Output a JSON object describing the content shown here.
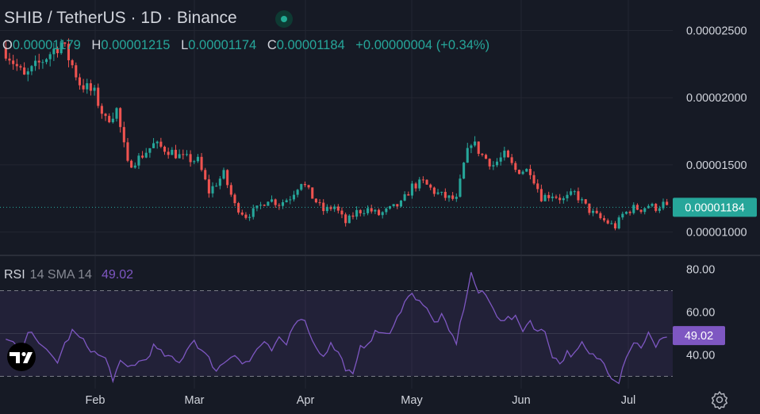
{
  "header": {
    "title": "SHIB / TetherUS · 1D · Binance",
    "ohlc": {
      "o_key": "O",
      "o_val": "0.00001179",
      "h_key": "H",
      "h_val": "0.00001215",
      "l_key": "L",
      "l_val": "0.00001174",
      "c_key": "C",
      "c_val": "0.00001184",
      "change": "+0.00000004 (+0.34%)"
    }
  },
  "rsi_legend": {
    "name": "RSI",
    "params": "14 SMA 14",
    "value": "49.02"
  },
  "colors": {
    "bg": "#161a25",
    "up": "#26a69a",
    "down": "#ef5350",
    "rsi": "#7e57c2",
    "grid": "#232632",
    "text": "#d1d4dc"
  },
  "icons": {
    "logo": "tradingview-logo-icon",
    "settings": "gear-icon"
  },
  "chart_data": [
    {
      "type": "candlestick",
      "title": "SHIB / TetherUS · 1D · Binance",
      "x_tick_labels": [
        "Feb",
        "Mar",
        "Apr",
        "May",
        "Jun",
        "Jul"
      ],
      "y_tick_labels": [
        "0.00002500",
        "0.00002000",
        "0.00001500",
        "0.00001000"
      ],
      "y_ticks": [
        2.5e-05,
        2e-05,
        1.5e-05,
        1e-05
      ],
      "ylim": [
        8.5e-06,
        2.68e-05
      ],
      "last_price": 1.184e-05,
      "last_price_label": "0.00001184",
      "grid": true,
      "close_path": [
        [
          0,
          2.35e-05
        ],
        [
          5,
          2.15e-05
        ],
        [
          10,
          2.28e-05
        ],
        [
          15,
          2.41e-05
        ],
        [
          18,
          2.24e-05
        ],
        [
          20,
          2.11e-05
        ],
        [
          24,
          2.03e-05
        ],
        [
          27,
          1.83e-05
        ],
        [
          30,
          1.91e-05
        ],
        [
          33,
          1.5e-05
        ],
        [
          36,
          1.55e-05
        ],
        [
          40,
          1.65e-05
        ],
        [
          44,
          1.61e-05
        ],
        [
          48,
          1.55e-05
        ],
        [
          52,
          1.53e-05
        ],
        [
          55,
          1.3e-05
        ],
        [
          59,
          1.43e-05
        ],
        [
          62,
          1.2e-05
        ],
        [
          65,
          1.12e-05
        ],
        [
          68,
          1.17e-05
        ],
        [
          71,
          1.25e-05
        ],
        [
          74,
          1.21e-05
        ],
        [
          77,
          1.26e-05
        ],
        [
          80,
          1.38e-05
        ],
        [
          83,
          1.26e-05
        ],
        [
          86,
          1.16e-05
        ],
        [
          89,
          1.19e-05
        ],
        [
          92,
          1.07e-05
        ],
        [
          95,
          1.15e-05
        ],
        [
          98,
          1.17e-05
        ],
        [
          101,
          1.13e-05
        ],
        [
          104,
          1.17e-05
        ],
        [
          107,
          1.21e-05
        ],
        [
          110,
          1.34e-05
        ],
        [
          113,
          1.37e-05
        ],
        [
          116,
          1.3e-05
        ],
        [
          119,
          1.26e-05
        ],
        [
          122,
          1.24e-05
        ],
        [
          124,
          1.5e-05
        ],
        [
          126,
          1.68e-05
        ],
        [
          129,
          1.57e-05
        ],
        [
          132,
          1.5e-05
        ],
        [
          135,
          1.57e-05
        ],
        [
          138,
          1.46e-05
        ],
        [
          142,
          1.46e-05
        ],
        [
          145,
          1.26e-05
        ],
        [
          148,
          1.28e-05
        ],
        [
          151,
          1.24e-05
        ],
        [
          154,
          1.29e-05
        ],
        [
          158,
          1.16e-05
        ],
        [
          161,
          1.1e-05
        ],
        [
          165,
          1.04e-05
        ],
        [
          167,
          1.13e-05
        ],
        [
          170,
          1.18e-05
        ],
        [
          172,
          1.17e-05
        ],
        [
          174,
          1.2e-05
        ],
        [
          176,
          1.18e-05
        ],
        [
          178,
          1.21e-05
        ],
        [
          179,
          1.18e-05
        ]
      ]
    },
    {
      "type": "line",
      "title": "RSI 14 SMA 14",
      "series": [
        {
          "name": "RSI",
          "last": 49.02
        }
      ],
      "y_tick_labels": [
        "80.00",
        "60.00",
        "40.00"
      ],
      "y_ticks": [
        80,
        60,
        40
      ],
      "bands": [
        70,
        30
      ],
      "ylim": [
        25,
        85
      ],
      "last_label": "49.02",
      "path": [
        [
          0,
          47
        ],
        [
          4,
          43
        ],
        [
          7,
          52
        ],
        [
          10,
          43
        ],
        [
          14,
          37
        ],
        [
          16,
          45
        ],
        [
          18,
          51
        ],
        [
          20,
          48
        ],
        [
          24,
          41
        ],
        [
          27,
          38
        ],
        [
          29,
          29
        ],
        [
          31,
          36
        ],
        [
          33,
          34
        ],
        [
          35,
          36
        ],
        [
          38,
          38
        ],
        [
          40,
          44
        ],
        [
          42,
          41
        ],
        [
          45,
          38
        ],
        [
          47,
          36
        ],
        [
          49,
          43
        ],
        [
          51,
          47
        ],
        [
          53,
          42
        ],
        [
          55,
          38
        ],
        [
          57,
          33
        ],
        [
          60,
          38
        ],
        [
          62,
          41
        ],
        [
          64,
          36
        ],
        [
          66,
          37
        ],
        [
          68,
          43
        ],
        [
          70,
          45
        ],
        [
          72,
          42
        ],
        [
          74,
          47
        ],
        [
          76,
          45
        ],
        [
          78,
          55
        ],
        [
          80,
          58
        ],
        [
          82,
          52
        ],
        [
          84,
          43
        ],
        [
          86,
          40
        ],
        [
          88,
          45
        ],
        [
          90,
          41
        ],
        [
          92,
          34
        ],
        [
          94,
          30
        ],
        [
          96,
          43
        ],
        [
          98,
          46
        ],
        [
          100,
          50
        ],
        [
          102,
          51
        ],
        [
          104,
          49
        ],
        [
          106,
          57
        ],
        [
          108,
          66
        ],
        [
          110,
          68
        ],
        [
          112,
          66
        ],
        [
          114,
          61
        ],
        [
          116,
          55
        ],
        [
          118,
          58
        ],
        [
          120,
          51
        ],
        [
          122,
          46
        ],
        [
          124,
          62
        ],
        [
          126,
          78
        ],
        [
          128,
          69
        ],
        [
          130,
          68
        ],
        [
          132,
          61
        ],
        [
          134,
          57
        ],
        [
          136,
          57
        ],
        [
          138,
          57
        ],
        [
          140,
          52
        ],
        [
          142,
          56
        ],
        [
          144,
          51
        ],
        [
          146,
          51
        ],
        [
          148,
          40
        ],
        [
          150,
          36
        ],
        [
          152,
          41
        ],
        [
          154,
          40
        ],
        [
          156,
          45
        ],
        [
          158,
          40
        ],
        [
          160,
          39
        ],
        [
          162,
          36
        ],
        [
          164,
          30
        ],
        [
          166,
          28
        ],
        [
          168,
          40
        ],
        [
          170,
          46
        ],
        [
          172,
          44
        ],
        [
          174,
          50
        ],
        [
          176,
          43
        ],
        [
          178,
          49
        ],
        [
          179,
          49
        ]
      ]
    }
  ]
}
